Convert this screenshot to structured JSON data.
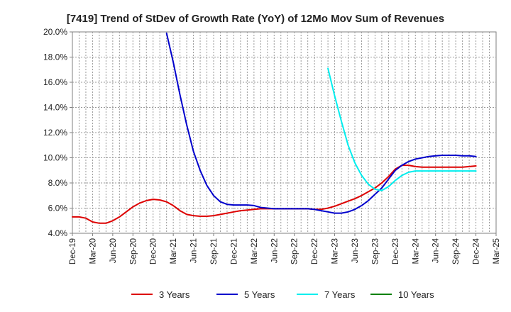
{
  "chart_data": {
    "type": "line",
    "title": "[7419]  Trend of StDev of Growth Rate (YoY) of 12Mo Mov Sum of Revenues",
    "xlabel": "",
    "ylabel": "",
    "x_ticks": [
      "Dec-19",
      "Mar-20",
      "Jun-20",
      "Sep-20",
      "Dec-20",
      "Mar-21",
      "Jun-21",
      "Sep-21",
      "Dec-21",
      "Mar-22",
      "Jun-22",
      "Sep-22",
      "Dec-22",
      "Mar-23",
      "Jun-23",
      "Sep-23",
      "Dec-23",
      "Mar-24",
      "Jun-24",
      "Sep-24",
      "Dec-24",
      "Mar-25"
    ],
    "x_range_months": [
      0,
      63
    ],
    "y_ticks": [
      "4.0%",
      "6.0%",
      "8.0%",
      "10.0%",
      "12.0%",
      "14.0%",
      "16.0%",
      "18.0%",
      "20.0%"
    ],
    "ylim": [
      4.0,
      20.0
    ],
    "grid": true,
    "legend_position": "bottom",
    "series": [
      {
        "name": "3 Years",
        "color": "#dd0000",
        "points": [
          [
            0,
            5.3
          ],
          [
            1,
            5.3
          ],
          [
            2,
            5.2
          ],
          [
            3,
            4.9
          ],
          [
            4,
            4.8
          ],
          [
            5,
            4.8
          ],
          [
            6,
            5.0
          ],
          [
            7,
            5.3
          ],
          [
            8,
            5.7
          ],
          [
            9,
            6.1
          ],
          [
            10,
            6.4
          ],
          [
            11,
            6.6
          ],
          [
            12,
            6.7
          ],
          [
            13,
            6.65
          ],
          [
            14,
            6.5
          ],
          [
            15,
            6.2
          ],
          [
            16,
            5.8
          ],
          [
            17,
            5.5
          ],
          [
            18,
            5.4
          ],
          [
            19,
            5.35
          ],
          [
            20,
            5.35
          ],
          [
            21,
            5.4
          ],
          [
            22,
            5.5
          ],
          [
            23,
            5.6
          ],
          [
            24,
            5.7
          ],
          [
            25,
            5.8
          ],
          [
            26,
            5.85
          ],
          [
            27,
            5.9
          ],
          [
            28,
            5.95
          ],
          [
            29,
            5.95
          ],
          [
            30,
            5.95
          ],
          [
            31,
            5.95
          ],
          [
            32,
            5.95
          ],
          [
            33,
            5.95
          ],
          [
            34,
            5.95
          ],
          [
            35,
            5.95
          ],
          [
            36,
            5.9
          ],
          [
            37,
            5.9
          ],
          [
            38,
            6.0
          ],
          [
            39,
            6.15
          ],
          [
            40,
            6.35
          ],
          [
            41,
            6.55
          ],
          [
            42,
            6.75
          ],
          [
            43,
            7.0
          ],
          [
            44,
            7.3
          ],
          [
            45,
            7.6
          ],
          [
            46,
            8.0
          ],
          [
            47,
            8.5
          ],
          [
            48,
            9.1
          ],
          [
            49,
            9.4
          ],
          [
            50,
            9.4
          ],
          [
            51,
            9.3
          ],
          [
            52,
            9.25
          ],
          [
            53,
            9.25
          ],
          [
            54,
            9.25
          ],
          [
            55,
            9.25
          ],
          [
            56,
            9.25
          ],
          [
            57,
            9.25
          ],
          [
            58,
            9.25
          ],
          [
            59,
            9.3
          ],
          [
            60,
            9.35
          ]
        ]
      },
      {
        "name": "5 Years",
        "color": "#0000cc",
        "points": [
          [
            14,
            19.9
          ],
          [
            15,
            17.6
          ],
          [
            16,
            15.0
          ],
          [
            17,
            12.6
          ],
          [
            18,
            10.5
          ],
          [
            19,
            9.0
          ],
          [
            20,
            7.8
          ],
          [
            21,
            7.0
          ],
          [
            22,
            6.5
          ],
          [
            23,
            6.3
          ],
          [
            24,
            6.25
          ],
          [
            25,
            6.25
          ],
          [
            26,
            6.25
          ],
          [
            27,
            6.2
          ],
          [
            28,
            6.05
          ],
          [
            29,
            6.0
          ],
          [
            30,
            5.95
          ],
          [
            31,
            5.95
          ],
          [
            32,
            5.95
          ],
          [
            33,
            5.95
          ],
          [
            34,
            5.95
          ],
          [
            35,
            5.95
          ],
          [
            36,
            5.9
          ],
          [
            37,
            5.8
          ],
          [
            38,
            5.7
          ],
          [
            39,
            5.6
          ],
          [
            40,
            5.6
          ],
          [
            41,
            5.7
          ],
          [
            42,
            5.9
          ],
          [
            43,
            6.2
          ],
          [
            44,
            6.6
          ],
          [
            45,
            7.1
          ],
          [
            46,
            7.6
          ],
          [
            47,
            8.3
          ],
          [
            48,
            9.0
          ],
          [
            49,
            9.4
          ],
          [
            50,
            9.7
          ],
          [
            51,
            9.9
          ],
          [
            52,
            10.0
          ],
          [
            53,
            10.1
          ],
          [
            54,
            10.15
          ],
          [
            55,
            10.2
          ],
          [
            56,
            10.2
          ],
          [
            57,
            10.2
          ],
          [
            58,
            10.15
          ],
          [
            59,
            10.15
          ],
          [
            60,
            10.1
          ]
        ]
      },
      {
        "name": "7 Years",
        "color": "#00eeee",
        "points": [
          [
            38,
            17.1
          ],
          [
            39,
            14.9
          ],
          [
            40,
            12.9
          ],
          [
            41,
            11.0
          ],
          [
            42,
            9.6
          ],
          [
            43,
            8.6
          ],
          [
            44,
            7.9
          ],
          [
            45,
            7.5
          ],
          [
            46,
            7.4
          ],
          [
            47,
            7.7
          ],
          [
            48,
            8.2
          ],
          [
            49,
            8.6
          ],
          [
            50,
            8.85
          ],
          [
            51,
            8.95
          ],
          [
            52,
            8.95
          ],
          [
            53,
            8.95
          ],
          [
            54,
            8.95
          ],
          [
            55,
            8.95
          ],
          [
            56,
            8.95
          ],
          [
            57,
            8.95
          ],
          [
            58,
            8.95
          ],
          [
            59,
            8.95
          ],
          [
            60,
            8.95
          ]
        ]
      },
      {
        "name": "10 Years",
        "color": "#008000",
        "points": []
      }
    ]
  }
}
